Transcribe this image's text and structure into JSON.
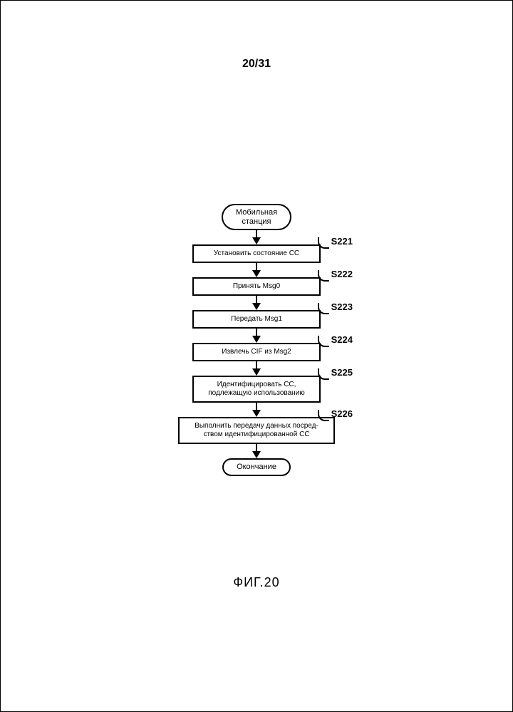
{
  "page_number": "20/31",
  "figure_caption": "ФИГ.20",
  "flow": {
    "start": "Мобильная\nстанция",
    "end": "Окончание",
    "steps": [
      {
        "id": "S221",
        "text": "Установить состояние СС",
        "wide": false
      },
      {
        "id": "S222",
        "text": "Принять Msg0",
        "wide": false
      },
      {
        "id": "S223",
        "text": "Передать Msg1",
        "wide": false
      },
      {
        "id": "S224",
        "text": "Извлечь CIF из Msg2",
        "wide": false
      },
      {
        "id": "S225",
        "text": "Идентифицировать СС,\nподлежащую использованию",
        "wide": false
      },
      {
        "id": "S226",
        "text": "Выполнить передачу данных посред-\nством идентифицированной СС",
        "wide": true
      }
    ]
  },
  "style": {
    "type": "flowchart",
    "background_color": "#ffffff",
    "stroke_color": "#000000",
    "stroke_width": 2,
    "terminal_border_radius": 20,
    "terminal_fontsize": 11,
    "process_fontsize": 10,
    "label_fontsize": 13,
    "label_fontweight": "bold",
    "page_number_fontsize": 16,
    "figure_caption_fontsize": 18,
    "arrow_length": 20,
    "arrowhead_size": 10,
    "process_width": 180,
    "process_width_wide": 220
  }
}
